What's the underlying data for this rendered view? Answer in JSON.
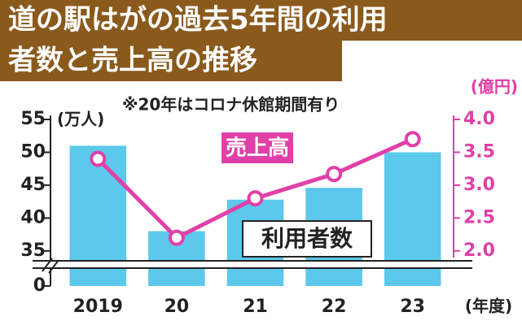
{
  "chart_data": {
    "type": "combo",
    "title": [
      "道の駅はがの過去5年間の利用",
      "者数と売上高の推移"
    ],
    "annotation": "※20年はコロナ休館期間有り",
    "y_unit": "(万人)",
    "y2_unit": "(億円)",
    "x_label": "(年度)",
    "categories": [
      "2019",
      "20",
      "21",
      "22",
      "23"
    ],
    "ylim": [
      0,
      55
    ],
    "y_break": [
      0,
      33
    ],
    "yticks": [
      0,
      35,
      40,
      45,
      50,
      55
    ],
    "y2lim": [
      1.8,
      4.0
    ],
    "y2ticks": [
      {
        "value": 2,
        "label": "2.0"
      },
      {
        "value": 2.5,
        "label": "2.5"
      },
      {
        "value": 3,
        "label": "3.0"
      },
      {
        "value": 3.5,
        "label": "3.5"
      },
      {
        "value": 4,
        "label": "4.0"
      }
    ],
    "series": [
      {
        "name": "利用者数",
        "type": "bar",
        "axis": "y",
        "color": "#5cc8ec",
        "values": [
          51.0,
          38.0,
          42.8,
          44.6,
          50.0
        ]
      },
      {
        "name": "売上高",
        "type": "line",
        "axis": "y2",
        "color": "#e040a8",
        "values": [
          3.4,
          2.2,
          2.8,
          3.17,
          3.7
        ]
      }
    ]
  }
}
